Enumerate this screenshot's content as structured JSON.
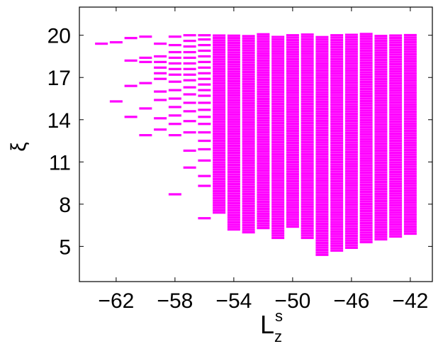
{
  "chart_data": {
    "type": "scatter",
    "title": "",
    "xlabel": "L",
    "xlabel_super": "s",
    "xlabel_sub": "z",
    "ylabel": "ξ",
    "xlim": [
      -64.5,
      -40.5
    ],
    "ylim": [
      2.5,
      22.0
    ],
    "xticks": [
      -62,
      -58,
      -54,
      -50,
      -46,
      -42
    ],
    "yticks": [
      5,
      8,
      11,
      14,
      17,
      20
    ],
    "grid": false,
    "legend": "none",
    "marker": "horizontal-dash",
    "color": "#ff00ff",
    "series": [
      {
        "x": -63,
        "y": [
          19.4
        ]
      },
      {
        "x": -62,
        "y": [
          15.3,
          19.5
        ]
      },
      {
        "x": -61,
        "y": [
          14.2,
          16.4,
          18.2,
          19.8
        ]
      },
      {
        "x": -60,
        "y": [
          12.9,
          14.8,
          16.6,
          18.1,
          18.4,
          19.9
        ]
      },
      {
        "x": -59,
        "y": [
          13.3,
          14.1,
          15.4,
          16.0,
          16.9,
          17.3,
          17.7,
          18.1,
          18.5,
          19.4
        ]
      },
      {
        "x": -58,
        "y": [
          8.7,
          12.9,
          13.7,
          14.3,
          14.9,
          15.5,
          16.1,
          16.7,
          17.2,
          17.6,
          18.0,
          18.4,
          18.8,
          19.3,
          19.9
        ]
      },
      {
        "x": -57,
        "y": [
          10.6,
          11.8,
          13.1,
          13.9,
          14.6,
          15.2,
          15.8,
          16.3,
          16.8,
          17.2,
          17.6,
          18.0,
          18.4,
          18.8,
          19.2,
          19.6,
          20.0
        ]
      },
      {
        "x": -56,
        "y": [
          7.0,
          9.3,
          10.0,
          11.1,
          11.9,
          12.5,
          13.1,
          13.7,
          14.2,
          14.7,
          15.2,
          15.7,
          16.1,
          16.5,
          16.9,
          17.3,
          17.7,
          18.1,
          18.5,
          18.9,
          19.3,
          19.7,
          20.0
        ]
      },
      {
        "x": -55,
        "y": {
          "from": 7.4,
          "to": 20.0
        }
      },
      {
        "x": -54,
        "y": {
          "from": 6.2,
          "to": 20.0
        }
      },
      {
        "x": -53,
        "y": {
          "from": 6.0,
          "to": 20.0
        }
      },
      {
        "x": -52,
        "y": {
          "from": 6.3,
          "to": 20.1
        }
      },
      {
        "x": -51,
        "y": {
          "from": 5.6,
          "to": 20.0
        }
      },
      {
        "x": -50,
        "y": {
          "from": 6.4,
          "to": 20.1
        }
      },
      {
        "x": -49,
        "y": {
          "from": 5.6,
          "to": 20.1
        }
      },
      {
        "x": -48,
        "y": {
          "from": 4.4,
          "to": 20.0
        }
      },
      {
        "x": -47,
        "y": {
          "from": 4.7,
          "to": 20.1
        }
      },
      {
        "x": -46,
        "y": {
          "from": 4.9,
          "to": 20.1
        }
      },
      {
        "x": -45,
        "y": {
          "from": 5.3,
          "to": 20.1
        }
      },
      {
        "x": -44,
        "y": {
          "from": 5.5,
          "to": 20.1
        }
      },
      {
        "x": -43,
        "y": {
          "from": 5.7,
          "to": 20.1
        }
      },
      {
        "x": -42,
        "y": {
          "from": 5.9,
          "to": 20.1
        }
      }
    ]
  }
}
